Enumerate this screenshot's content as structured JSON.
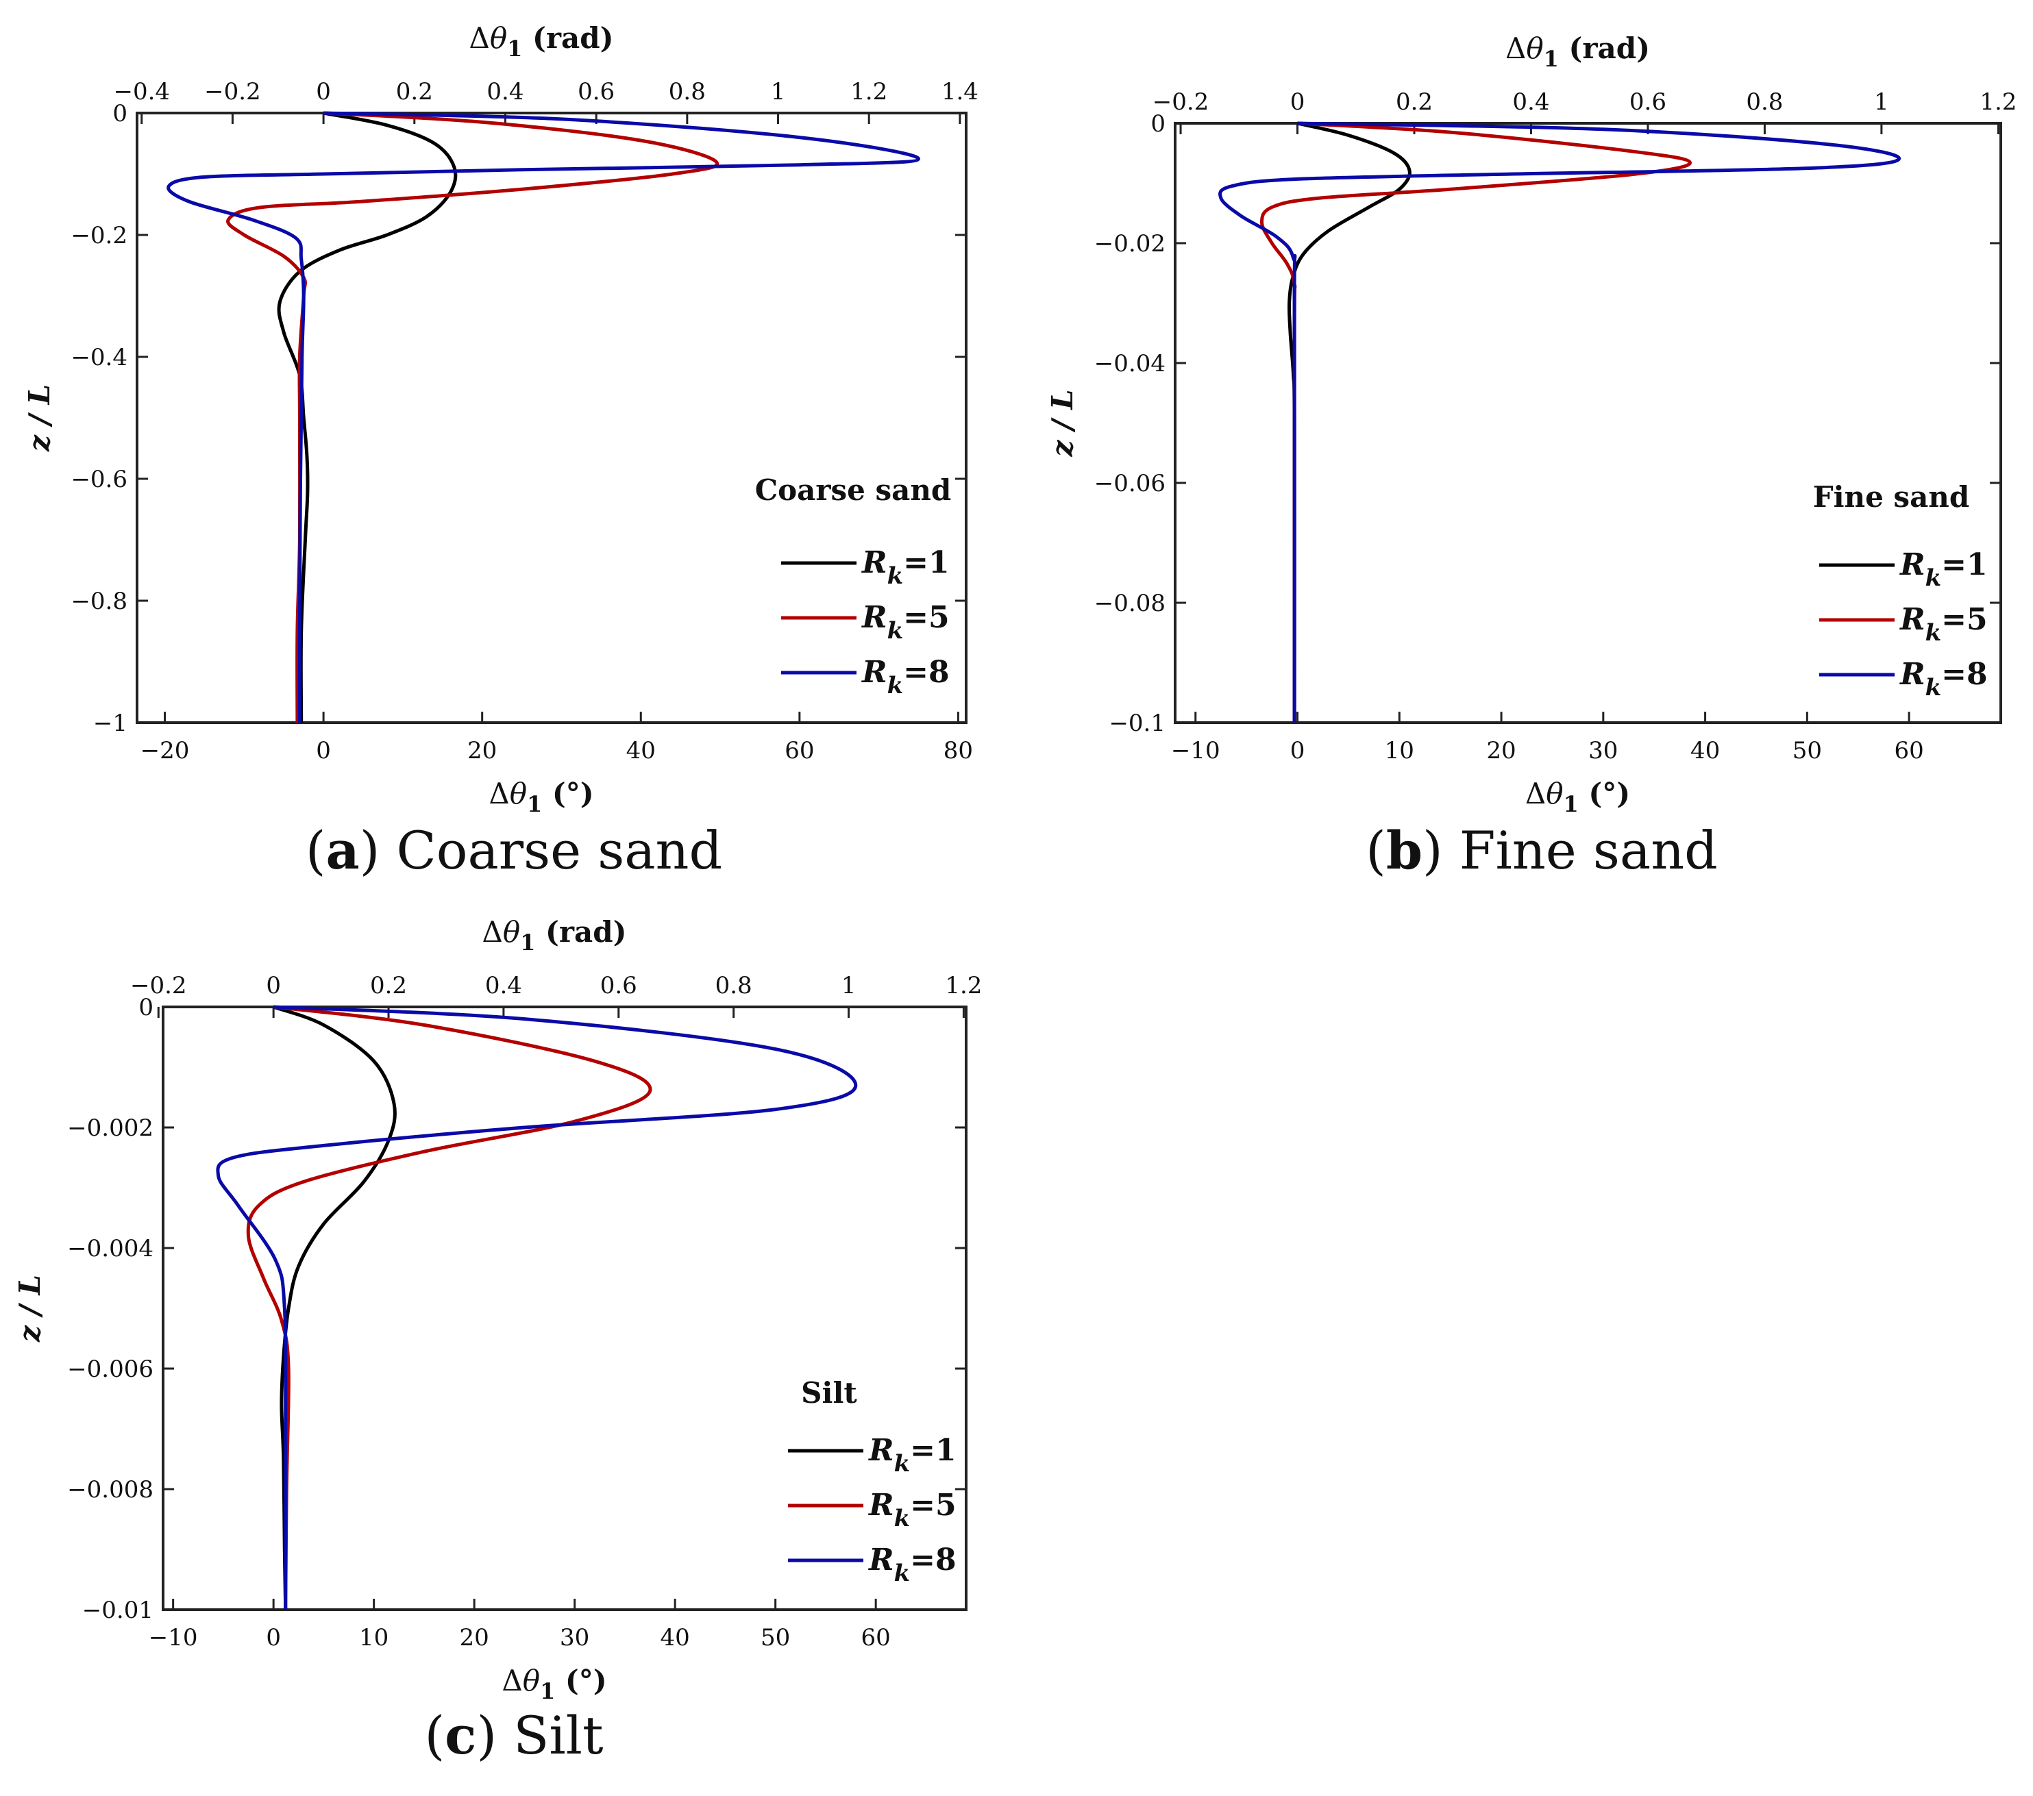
{
  "chart_data": [
    {
      "type": "line",
      "panel": "a",
      "caption_letter": "a",
      "caption_text": "Coarse sand",
      "xlabel_bottom": "Δθ₁ (°)",
      "xlabel_top": "Δθ₁ (rad)",
      "ylabel": "z / L",
      "xlim": [
        -23.5,
        81
      ],
      "ylim": [
        -1,
        0
      ],
      "xticks": [
        -20,
        0,
        20,
        40,
        60,
        80
      ],
      "xticklabels": [
        "−20",
        "0",
        "20",
        "40",
        "60",
        "80"
      ],
      "xticks_top": [
        -0.4,
        -0.2,
        0,
        0.2,
        0.4,
        0.6,
        0.8,
        1,
        1.2,
        1.4
      ],
      "xticklabels_top": [
        "−0.4",
        "−0.2",
        "0",
        "0.2",
        "0.4",
        "0.6",
        "0.8",
        "1",
        "1.2",
        "1.4"
      ],
      "yticks": [
        0,
        -0.2,
        -0.4,
        -0.6,
        -0.8,
        -1
      ],
      "yticklabels": [
        "0",
        "−0.2",
        "−0.4",
        "−0.6",
        "−0.8",
        "−1"
      ],
      "legend_title": "Coarse sand",
      "series": [
        {
          "name": "Rk=1",
          "color": "#000000",
          "x": [
            0,
            8,
            14,
            16.5,
            16,
            13,
            8,
            2,
            -3,
            -5.5,
            -5,
            -3,
            -2.5,
            -2.1,
            -2,
            -2.3,
            -2.8,
            -2.8
          ],
          "y": [
            0,
            -0.02,
            -0.05,
            -0.09,
            -0.13,
            -0.17,
            -0.2,
            -0.225,
            -0.26,
            -0.31,
            -0.36,
            -0.43,
            -0.5,
            -0.56,
            -0.62,
            -0.7,
            -0.85,
            -1
          ]
        },
        {
          "name": "Rk=5",
          "color": "#b30000",
          "x": [
            0,
            20,
            40,
            49.5,
            44,
            25,
            5,
            -8,
            -12,
            -10,
            -5,
            -2.5,
            -2.5,
            -3,
            -3,
            -3,
            -3.3,
            -3.3
          ],
          "y": [
            0,
            -0.015,
            -0.045,
            -0.08,
            -0.1,
            -0.125,
            -0.145,
            -0.155,
            -0.175,
            -0.2,
            -0.235,
            -0.27,
            -0.3,
            -0.4,
            -0.5,
            -0.7,
            -0.85,
            -1
          ]
        },
        {
          "name": "Rk=8",
          "color": "#0a0aa8",
          "x": [
            0,
            30,
            60,
            75,
            60,
            25,
            0,
            -15,
            -19.5,
            -17,
            -9,
            -3.5,
            -2.8,
            -2.5,
            -2.7,
            -2.9,
            -3,
            -3
          ],
          "y": [
            0,
            -0.01,
            -0.04,
            -0.075,
            -0.085,
            -0.093,
            -0.1,
            -0.105,
            -0.12,
            -0.145,
            -0.175,
            -0.205,
            -0.24,
            -0.3,
            -0.4,
            -0.6,
            -0.85,
            -1
          ]
        }
      ]
    },
    {
      "type": "line",
      "panel": "b",
      "caption_letter": "b",
      "caption_text": "Fine sand",
      "xlabel_bottom": "Δθ₁ (°)",
      "xlabel_top": "Δθ₁ (rad)",
      "ylabel": "z / L",
      "xlim": [
        -12,
        69
      ],
      "ylim": [
        -0.1,
        0
      ],
      "xticks": [
        -10,
        0,
        10,
        20,
        30,
        40,
        50,
        60
      ],
      "xticklabels": [
        "−10",
        "0",
        "10",
        "20",
        "30",
        "40",
        "50",
        "60"
      ],
      "xticks_top": [
        -0.2,
        0,
        0.2,
        0.4,
        0.6,
        0.8,
        1,
        1.2
      ],
      "xticklabels_top": [
        "−0.2",
        "0",
        "0.2",
        "0.4",
        "0.6",
        "0.8",
        "1",
        "1.2"
      ],
      "yticks": [
        0,
        -0.02,
        -0.04,
        -0.06,
        -0.08,
        -0.1
      ],
      "yticklabels": [
        "0",
        "−0.02",
        "−0.04",
        "−0.06",
        "−0.08",
        "−0.1"
      ],
      "legend_title": "Fine sand",
      "series": [
        {
          "name": "Rk=1",
          "color": "#000000",
          "x": [
            0,
            5,
            9.5,
            11,
            10,
            7,
            3,
            0.5,
            -0.5,
            -0.8,
            -0.7,
            -0.4,
            -0.3,
            -0.3
          ],
          "y": [
            0,
            -0.002,
            -0.005,
            -0.008,
            -0.011,
            -0.014,
            -0.018,
            -0.022,
            -0.026,
            -0.03,
            -0.035,
            -0.042,
            -0.05,
            -0.1
          ]
        },
        {
          "name": "Rk=5",
          "color": "#b30000",
          "x": [
            0,
            15,
            32,
            38.5,
            33,
            15,
            2,
            -2.5,
            -3.5,
            -2.5,
            -1,
            -0.3,
            -0.3,
            -0.3
          ],
          "y": [
            0,
            -0.0015,
            -0.0045,
            -0.0065,
            -0.0085,
            -0.011,
            -0.0125,
            -0.014,
            -0.0165,
            -0.02,
            -0.0235,
            -0.027,
            -0.035,
            -0.1
          ]
        },
        {
          "name": "Rk=8",
          "color": "#0a0aa8",
          "x": [
            0,
            30,
            52,
            59,
            50,
            20,
            0,
            -6.5,
            -7.5,
            -5.5,
            -2,
            -0.4,
            -0.3,
            -0.3
          ],
          "y": [
            0,
            -0.001,
            -0.0035,
            -0.006,
            -0.0075,
            -0.0085,
            -0.0093,
            -0.0105,
            -0.0125,
            -0.0155,
            -0.019,
            -0.0225,
            -0.03,
            -0.1
          ]
        }
      ]
    },
    {
      "type": "line",
      "panel": "c",
      "caption_letter": "c",
      "caption_text": "Silt",
      "xlabel_bottom": "Δθ₁ (°)",
      "xlabel_top": "Δθ₁ (rad)",
      "ylabel": "z / L",
      "xlim": [
        -11,
        69
      ],
      "ylim": [
        -0.01,
        0
      ],
      "xticks": [
        -10,
        0,
        10,
        20,
        30,
        40,
        50,
        60
      ],
      "xticklabels": [
        "−10",
        "0",
        "10",
        "20",
        "30",
        "40",
        "50",
        "60"
      ],
      "xticks_top": [
        -0.2,
        0,
        0.2,
        0.4,
        0.6,
        0.8,
        1,
        1.2
      ],
      "xticklabels_top": [
        "−0.2",
        "0",
        "0.2",
        "0.4",
        "0.6",
        "0.8",
        "1",
        "1.2"
      ],
      "yticks": [
        0,
        -0.002,
        -0.004,
        -0.006,
        -0.008,
        -0.01
      ],
      "yticklabels": [
        "0",
        "−0.002",
        "−0.004",
        "−0.006",
        "−0.008",
        "−0.01"
      ],
      "legend_title": "Silt",
      "series": [
        {
          "name": "Rk=1",
          "color": "#000000",
          "x": [
            0,
            5,
            10,
            12,
            11.5,
            9,
            5,
            2.5,
            1.5,
            1,
            0.8,
            1,
            1.1,
            1.2
          ],
          "y": [
            0,
            -0.0003,
            -0.0009,
            -0.0016,
            -0.0022,
            -0.0029,
            -0.0036,
            -0.0043,
            -0.005,
            -0.0058,
            -0.0066,
            -0.0075,
            -0.009,
            -0.01
          ]
        },
        {
          "name": "Rk=5",
          "color": "#b30000",
          "x": [
            0,
            15,
            32,
            37.5,
            30,
            15,
            3,
            -1.5,
            -2.5,
            -1,
            0.8,
            1.5,
            1.3,
            1.2
          ],
          "y": [
            0,
            -0.0003,
            -0.0009,
            -0.0014,
            -0.0019,
            -0.0024,
            -0.0029,
            -0.0033,
            -0.0038,
            -0.0045,
            -0.0052,
            -0.006,
            -0.008,
            -0.01
          ]
        },
        {
          "name": "Rk=8",
          "color": "#0a0aa8",
          "x": [
            0,
            25,
            50,
            58,
            50,
            25,
            5,
            -4,
            -5.5,
            -3.5,
            0.2,
            1.1,
            1.2,
            1.2
          ],
          "y": [
            0,
            -0.0002,
            -0.0007,
            -0.0013,
            -0.0017,
            -0.002,
            -0.0023,
            -0.0025,
            -0.0028,
            -0.0033,
            -0.0042,
            -0.005,
            -0.007,
            -0.01
          ]
        }
      ]
    }
  ]
}
